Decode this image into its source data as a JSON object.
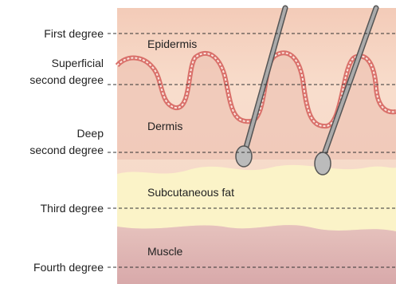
{
  "depth_labels": [
    {
      "lines": [
        "First degree"
      ]
    },
    {
      "lines": [
        "Superficial",
        "second degree"
      ]
    },
    {
      "lines": [
        "Deep",
        "second degree"
      ]
    },
    {
      "lines": [
        "Third degree"
      ]
    },
    {
      "lines": [
        "Fourth degree"
      ]
    }
  ],
  "layers": [
    "Epidermis",
    "Dermis",
    "Subcutaneous fat",
    "Muscle"
  ]
}
